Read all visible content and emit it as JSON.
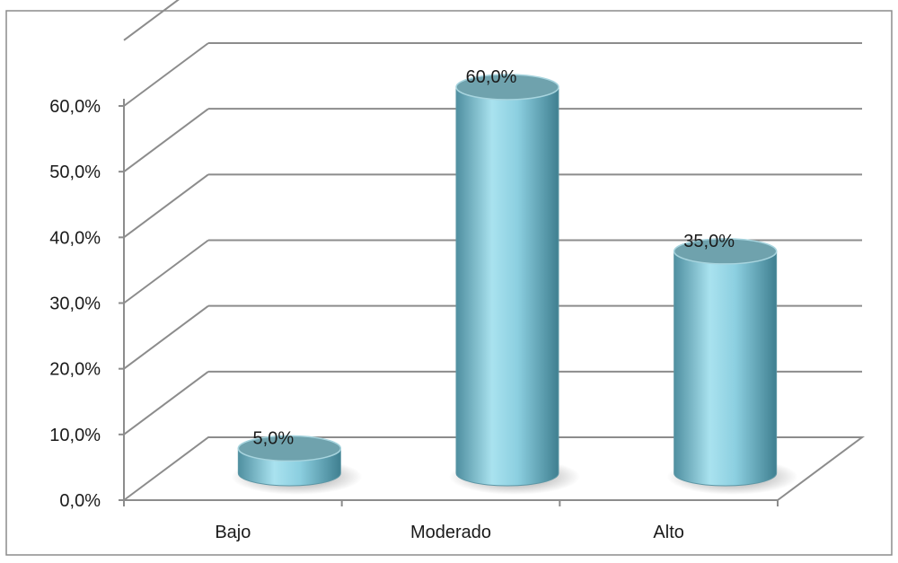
{
  "chart_data": {
    "type": "bar",
    "style": "3d-cylinder",
    "categories": [
      "Bajo",
      "Moderado",
      "Alto"
    ],
    "values": [
      5.0,
      60.0,
      35.0
    ],
    "data_labels": [
      "5,0%",
      "60,0%",
      "35,0%"
    ],
    "y_ticks": [
      "0,0%",
      "10,0%",
      "20,0%",
      "30,0%",
      "40,0%",
      "50,0%",
      "60,0%"
    ],
    "ylim": [
      0,
      60
    ],
    "title": "",
    "xlabel": "",
    "ylabel": "",
    "grid": true,
    "legend": "none",
    "colors": {
      "bar": "#8fd0e0",
      "bar_dark": "#4f8fa0",
      "bar_top": "#6fa2ad",
      "grid": "#8c8c8c",
      "frame": "#8c8c8c"
    }
  }
}
